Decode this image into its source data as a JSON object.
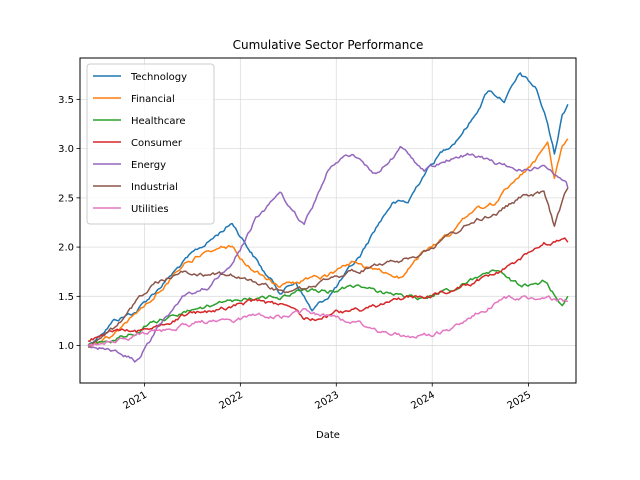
{
  "chart_data": {
    "type": "line",
    "title": "Cumulative Sector Performance",
    "xlabel": "Date",
    "ylabel": "",
    "x_ticks": [
      "2021",
      "2022",
      "2023",
      "2024",
      "2025"
    ],
    "y_ticks": [
      "1.0",
      "1.5",
      "2.0",
      "2.5",
      "3.0",
      "3.5"
    ],
    "xlim": [
      "2020-05-01",
      "2025-07-01"
    ],
    "ylim": [
      0.62,
      3.92
    ],
    "grid": true,
    "legend": "upper left",
    "series": [
      {
        "name": "Technology",
        "color": "#1f77b4",
        "points": [
          [
            "2020-06-01",
            1.0
          ],
          [
            "2020-09-01",
            1.25
          ],
          [
            "2020-12-01",
            1.35
          ],
          [
            "2021-03-01",
            1.6
          ],
          [
            "2021-06-01",
            1.85
          ],
          [
            "2021-09-01",
            2.05
          ],
          [
            "2021-12-01",
            2.25
          ],
          [
            "2022-02-01",
            2.0
          ],
          [
            "2022-04-01",
            1.75
          ],
          [
            "2022-06-01",
            1.55
          ],
          [
            "2022-08-01",
            1.65
          ],
          [
            "2022-10-01",
            1.35
          ],
          [
            "2022-12-01",
            1.5
          ],
          [
            "2023-02-01",
            1.7
          ],
          [
            "2023-04-01",
            1.9
          ],
          [
            "2023-06-01",
            2.2
          ],
          [
            "2023-08-01",
            2.45
          ],
          [
            "2023-10-01",
            2.45
          ],
          [
            "2023-12-01",
            2.75
          ],
          [
            "2024-02-01",
            2.95
          ],
          [
            "2024-04-01",
            3.1
          ],
          [
            "2024-06-01",
            3.3
          ],
          [
            "2024-08-01",
            3.6
          ],
          [
            "2024-10-01",
            3.5
          ],
          [
            "2024-12-01",
            3.75
          ],
          [
            "2025-02-01",
            3.6
          ],
          [
            "2025-03-15",
            3.25
          ],
          [
            "2025-04-10",
            2.95
          ],
          [
            "2025-05-10",
            3.35
          ],
          [
            "2025-05-31",
            3.45
          ]
        ]
      },
      {
        "name": "Financial",
        "color": "#ff7f0e",
        "points": [
          [
            "2020-06-01",
            1.0
          ],
          [
            "2020-09-01",
            1.1
          ],
          [
            "2020-12-01",
            1.3
          ],
          [
            "2021-03-01",
            1.55
          ],
          [
            "2021-06-01",
            1.85
          ],
          [
            "2021-09-01",
            1.95
          ],
          [
            "2021-12-01",
            2.0
          ],
          [
            "2022-03-01",
            1.75
          ],
          [
            "2022-06-01",
            1.6
          ],
          [
            "2022-09-01",
            1.65
          ],
          [
            "2022-12-01",
            1.7
          ],
          [
            "2023-03-01",
            1.85
          ],
          [
            "2023-06-01",
            1.75
          ],
          [
            "2023-09-01",
            1.7
          ],
          [
            "2023-12-01",
            1.95
          ],
          [
            "2024-03-01",
            2.1
          ],
          [
            "2024-06-01",
            2.35
          ],
          [
            "2024-09-01",
            2.45
          ],
          [
            "2024-12-01",
            2.75
          ],
          [
            "2025-02-01",
            2.9
          ],
          [
            "2025-03-15",
            3.05
          ],
          [
            "2025-04-10",
            2.7
          ],
          [
            "2025-05-10",
            3.05
          ],
          [
            "2025-05-31",
            3.1
          ]
        ]
      },
      {
        "name": "Healthcare",
        "color": "#2ca02c",
        "points": [
          [
            "2020-06-01",
            1.0
          ],
          [
            "2020-09-01",
            1.05
          ],
          [
            "2020-12-01",
            1.15
          ],
          [
            "2021-03-01",
            1.25
          ],
          [
            "2021-06-01",
            1.35
          ],
          [
            "2021-09-01",
            1.4
          ],
          [
            "2021-12-01",
            1.45
          ],
          [
            "2022-03-01",
            1.5
          ],
          [
            "2022-06-01",
            1.5
          ],
          [
            "2022-09-01",
            1.55
          ],
          [
            "2022-12-01",
            1.55
          ],
          [
            "2023-03-01",
            1.6
          ],
          [
            "2023-06-01",
            1.55
          ],
          [
            "2023-09-01",
            1.5
          ],
          [
            "2023-12-01",
            1.5
          ],
          [
            "2024-03-01",
            1.55
          ],
          [
            "2024-06-01",
            1.65
          ],
          [
            "2024-09-01",
            1.75
          ],
          [
            "2024-12-01",
            1.6
          ],
          [
            "2025-03-01",
            1.65
          ],
          [
            "2025-05-10",
            1.4
          ],
          [
            "2025-05-31",
            1.5
          ]
        ]
      },
      {
        "name": "Consumer",
        "color": "#d62728",
        "points": [
          [
            "2020-06-01",
            1.05
          ],
          [
            "2020-09-01",
            1.15
          ],
          [
            "2020-12-01",
            1.15
          ],
          [
            "2021-03-01",
            1.2
          ],
          [
            "2021-06-01",
            1.3
          ],
          [
            "2021-09-01",
            1.35
          ],
          [
            "2021-12-01",
            1.4
          ],
          [
            "2022-03-01",
            1.45
          ],
          [
            "2022-06-01",
            1.4
          ],
          [
            "2022-09-01",
            1.25
          ],
          [
            "2022-12-01",
            1.3
          ],
          [
            "2023-03-01",
            1.35
          ],
          [
            "2023-06-01",
            1.4
          ],
          [
            "2023-09-01",
            1.45
          ],
          [
            "2023-12-01",
            1.5
          ],
          [
            "2024-03-01",
            1.55
          ],
          [
            "2024-06-01",
            1.65
          ],
          [
            "2024-09-01",
            1.75
          ],
          [
            "2024-12-01",
            1.85
          ],
          [
            "2025-03-01",
            2.05
          ],
          [
            "2025-05-31",
            2.05
          ]
        ]
      },
      {
        "name": "Energy",
        "color": "#9467bd",
        "points": [
          [
            "2020-06-01",
            1.0
          ],
          [
            "2020-09-01",
            0.95
          ],
          [
            "2020-12-01",
            0.85
          ],
          [
            "2021-03-01",
            1.2
          ],
          [
            "2021-06-01",
            1.5
          ],
          [
            "2021-09-01",
            1.6
          ],
          [
            "2021-12-01",
            1.8
          ],
          [
            "2022-03-01",
            2.3
          ],
          [
            "2022-06-01",
            2.55
          ],
          [
            "2022-09-01",
            2.2
          ],
          [
            "2022-12-01",
            2.8
          ],
          [
            "2023-03-01",
            2.95
          ],
          [
            "2023-06-01",
            2.75
          ],
          [
            "2023-09-01",
            3.0
          ],
          [
            "2023-12-01",
            2.8
          ],
          [
            "2024-03-01",
            2.9
          ],
          [
            "2024-06-01",
            2.95
          ],
          [
            "2024-09-01",
            2.85
          ],
          [
            "2024-12-01",
            2.8
          ],
          [
            "2025-03-01",
            2.8
          ],
          [
            "2025-05-31",
            2.6
          ]
        ]
      },
      {
        "name": "Industrial",
        "color": "#8c564b",
        "points": [
          [
            "2020-06-01",
            1.0
          ],
          [
            "2020-09-01",
            1.15
          ],
          [
            "2020-12-01",
            1.45
          ],
          [
            "2021-03-01",
            1.65
          ],
          [
            "2021-06-01",
            1.75
          ],
          [
            "2021-09-01",
            1.7
          ],
          [
            "2021-12-01",
            1.7
          ],
          [
            "2022-03-01",
            1.65
          ],
          [
            "2022-06-01",
            1.55
          ],
          [
            "2022-09-01",
            1.55
          ],
          [
            "2022-12-01",
            1.65
          ],
          [
            "2023-03-01",
            1.75
          ],
          [
            "2023-06-01",
            1.8
          ],
          [
            "2023-09-01",
            1.85
          ],
          [
            "2023-12-01",
            1.95
          ],
          [
            "2024-03-01",
            2.1
          ],
          [
            "2024-06-01",
            2.25
          ],
          [
            "2024-09-01",
            2.35
          ],
          [
            "2024-12-01",
            2.5
          ],
          [
            "2025-03-01",
            2.55
          ],
          [
            "2025-04-10",
            2.2
          ],
          [
            "2025-05-31",
            2.6
          ]
        ]
      },
      {
        "name": "Utilities",
        "color": "#e377c2",
        "points": [
          [
            "2020-06-01",
            1.0
          ],
          [
            "2020-09-01",
            1.05
          ],
          [
            "2020-12-01",
            1.1
          ],
          [
            "2021-03-01",
            1.15
          ],
          [
            "2021-06-01",
            1.2
          ],
          [
            "2021-09-01",
            1.25
          ],
          [
            "2021-12-01",
            1.25
          ],
          [
            "2022-03-01",
            1.3
          ],
          [
            "2022-06-01",
            1.3
          ],
          [
            "2022-09-01",
            1.35
          ],
          [
            "2022-12-01",
            1.3
          ],
          [
            "2023-03-01",
            1.25
          ],
          [
            "2023-06-01",
            1.15
          ],
          [
            "2023-09-01",
            1.1
          ],
          [
            "2023-12-01",
            1.1
          ],
          [
            "2024-03-01",
            1.15
          ],
          [
            "2024-06-01",
            1.3
          ],
          [
            "2024-09-01",
            1.45
          ],
          [
            "2024-12-01",
            1.5
          ],
          [
            "2025-03-01",
            1.5
          ],
          [
            "2025-05-31",
            1.45
          ]
        ]
      }
    ]
  }
}
